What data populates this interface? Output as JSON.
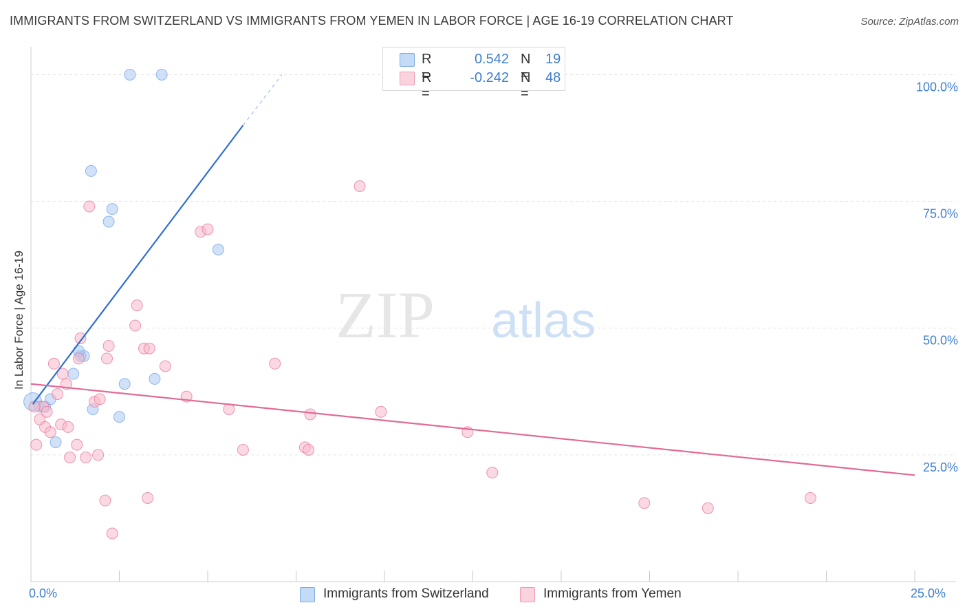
{
  "title": "IMMIGRANTS FROM SWITZERLAND VS IMMIGRANTS FROM YEMEN IN LABOR FORCE | AGE 16-19 CORRELATION CHART",
  "source": "Source: ZipAtlas.com",
  "watermark": {
    "zip": "ZIP",
    "atlas": "atlas"
  },
  "legend": {
    "rows": [
      {
        "r_label": "R =",
        "r_value": "0.542",
        "n_label": "N =",
        "n_value": "19",
        "color": "#a9c9f2"
      },
      {
        "r_label": "R =",
        "r_value": "-0.242",
        "n_label": "N =",
        "n_value": "48",
        "color": "#f6b9cb"
      }
    ]
  },
  "bottom_legend": [
    {
      "label": "Immigrants from Switzerland",
      "color": "#a9c9f2"
    },
    {
      "label": "Immigrants from Yemen",
      "color": "#f6b9cb"
    }
  ],
  "chart_data": {
    "type": "scatter",
    "title": "IMMIGRANTS FROM SWITZERLAND VS IMMIGRANTS FROM YEMEN IN LABOR FORCE | AGE 16-19 CORRELATION CHART",
    "xlabel": "",
    "ylabel": "In Labor Force | Age 16-19",
    "xlim": [
      0,
      25
    ],
    "ylim": [
      0,
      104
    ],
    "x_tick_labels": [
      "0.0%",
      "25.0%"
    ],
    "y_ticks": [
      25,
      50,
      75,
      100
    ],
    "y_tick_labels": [
      "25.0%",
      "50.0%",
      "75.0%",
      "100.0%"
    ],
    "grid": true,
    "series": [
      {
        "name": "Immigrants from Switzerland",
        "color": "#6fa3e6",
        "fill": "#a9c9f2",
        "points": [
          {
            "x": 0.05,
            "y": 35.5
          },
          {
            "x": 0.25,
            "y": 34.5
          },
          {
            "x": 0.4,
            "y": 34.5
          },
          {
            "x": 0.55,
            "y": 36.0
          },
          {
            "x": 0.7,
            "y": 27.5
          },
          {
            "x": 1.4,
            "y": 44.5
          },
          {
            "x": 1.5,
            "y": 44.5
          },
          {
            "x": 1.2,
            "y": 41.0
          },
          {
            "x": 1.35,
            "y": 45.5
          },
          {
            "x": 1.75,
            "y": 34.0
          },
          {
            "x": 1.7,
            "y": 81.0
          },
          {
            "x": 2.2,
            "y": 71.0
          },
          {
            "x": 2.3,
            "y": 73.5
          },
          {
            "x": 2.5,
            "y": 32.5
          },
          {
            "x": 2.65,
            "y": 39.0
          },
          {
            "x": 3.5,
            "y": 40.0
          },
          {
            "x": 2.8,
            "y": 100.0
          },
          {
            "x": 3.7,
            "y": 100.0
          },
          {
            "x": 5.3,
            "y": 65.5
          }
        ],
        "trend": {
          "x1": 0.05,
          "y1": 35.0,
          "x2": 6.0,
          "y2": 90.0,
          "dash_to_x": 7.1,
          "dash_to_y": 100.0
        }
      },
      {
        "name": "Immigrants from Yemen",
        "color": "#e8749a",
        "fill": "#f6b9cb",
        "points": [
          {
            "x": 0.15,
            "y": 27.0
          },
          {
            "x": 0.25,
            "y": 32.0
          },
          {
            "x": 0.35,
            "y": 34.5
          },
          {
            "x": 0.45,
            "y": 33.5
          },
          {
            "x": 0.4,
            "y": 30.5
          },
          {
            "x": 0.55,
            "y": 29.5
          },
          {
            "x": 0.65,
            "y": 43.0
          },
          {
            "x": 0.75,
            "y": 37.0
          },
          {
            "x": 0.85,
            "y": 31.0
          },
          {
            "x": 0.9,
            "y": 41.0
          },
          {
            "x": 1.0,
            "y": 39.0
          },
          {
            "x": 1.05,
            "y": 30.5
          },
          {
            "x": 1.1,
            "y": 24.5
          },
          {
            "x": 1.3,
            "y": 27.0
          },
          {
            "x": 1.35,
            "y": 44.0
          },
          {
            "x": 1.4,
            "y": 48.0
          },
          {
            "x": 1.55,
            "y": 24.5
          },
          {
            "x": 1.65,
            "y": 74.0
          },
          {
            "x": 1.8,
            "y": 35.5
          },
          {
            "x": 1.9,
            "y": 25.0
          },
          {
            "x": 1.95,
            "y": 36.0
          },
          {
            "x": 2.1,
            "y": 16.0
          },
          {
            "x": 2.15,
            "y": 44.0
          },
          {
            "x": 2.2,
            "y": 46.5
          },
          {
            "x": 2.3,
            "y": 9.5
          },
          {
            "x": 2.95,
            "y": 50.5
          },
          {
            "x": 3.0,
            "y": 54.5
          },
          {
            "x": 3.2,
            "y": 46.0
          },
          {
            "x": 3.35,
            "y": 46.0
          },
          {
            "x": 3.3,
            "y": 16.5
          },
          {
            "x": 3.8,
            "y": 42.5
          },
          {
            "x": 4.4,
            "y": 36.5
          },
          {
            "x": 4.8,
            "y": 69.0
          },
          {
            "x": 5.0,
            "y": 69.5
          },
          {
            "x": 5.6,
            "y": 34.0
          },
          {
            "x": 6.0,
            "y": 26.0
          },
          {
            "x": 6.9,
            "y": 43.0
          },
          {
            "x": 7.75,
            "y": 26.5
          },
          {
            "x": 7.85,
            "y": 26.0
          },
          {
            "x": 7.9,
            "y": 33.0
          },
          {
            "x": 9.3,
            "y": 78.0
          },
          {
            "x": 9.9,
            "y": 33.5
          },
          {
            "x": 12.35,
            "y": 29.5
          },
          {
            "x": 13.05,
            "y": 21.5
          },
          {
            "x": 17.35,
            "y": 15.5
          },
          {
            "x": 19.15,
            "y": 14.5
          },
          {
            "x": 22.05,
            "y": 16.5
          },
          {
            "x": 0.1,
            "y": 34.5
          }
        ],
        "trend": {
          "x1": 0.0,
          "y1": 39.0,
          "x2": 25.0,
          "y2": 21.0
        }
      }
    ]
  }
}
